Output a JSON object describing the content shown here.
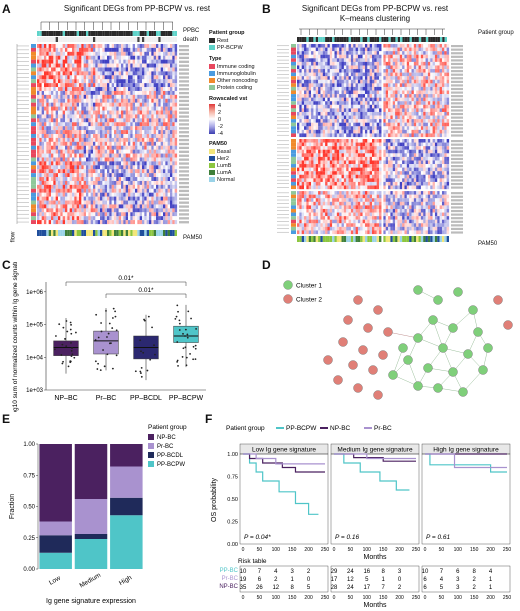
{
  "panels": {
    "A": "A",
    "B": "B",
    "C": "C",
    "D": "D",
    "E": "E",
    "F": "F"
  },
  "panelA": {
    "title": "Significant DEGs from PP-BCPW vs. rest",
    "top_tracks": [
      "PPBC",
      "death"
    ],
    "bottom_tracks": [
      "PAM50"
    ],
    "left_tracks": [
      "flow",
      "type"
    ],
    "legend": {
      "patient_group_title": "Patient group",
      "patient_group": [
        {
          "label": "Rest",
          "color": "#2a2a2a"
        },
        {
          "label": "PP-BCPW",
          "color": "#5fd3c9"
        }
      ],
      "type_title": "Type",
      "type": [
        {
          "label": "Immune coding",
          "color": "#e8475e"
        },
        {
          "label": "Immunoglobulin",
          "color": "#4a9be0"
        },
        {
          "label": "Other noncoding",
          "color": "#f08a2c"
        },
        {
          "label": "Protein coding",
          "color": "#8fc89a"
        }
      ],
      "rowscaled_title": "Rowscaled vst",
      "scale": [
        "4",
        "2",
        "0",
        "-2",
        "-4"
      ],
      "pam50_title": "PAM50",
      "pam50": [
        {
          "label": "Basal",
          "color": "#f2e67a"
        },
        {
          "label": "Her2",
          "color": "#1f4e9c"
        },
        {
          "label": "LumB",
          "color": "#8cc63f"
        },
        {
          "label": "LumA",
          "color": "#3f7f3a"
        },
        {
          "label": "Normal",
          "color": "#9ad3e8"
        }
      ]
    }
  },
  "panelB": {
    "title": "Significant DEGs from PP-BCPW vs. rest",
    "subtitle": "K–means clustering",
    "legend_label": "Patient group",
    "bottom_label": "PAM50"
  },
  "chart_data": [
    {
      "panel": "C",
      "type": "box",
      "ylabel": "Log10 sum of normalized counts within Ig gene signature",
      "categories": [
        "NP–BC",
        "Pr–BC",
        "PP–BCDL",
        "PP–BCPW"
      ],
      "colors": [
        "#4b2160",
        "#a992cf",
        "#2b2870",
        "#4fc5c8"
      ],
      "yticks": [
        "1e+03",
        "1e+04",
        "1e+05",
        "1e+06"
      ],
      "log_ylim": [
        3,
        6.3
      ],
      "boxes_log10": [
        {
          "q1": 4.05,
          "median": 4.3,
          "q3": 4.5,
          "lo": 3.5,
          "hi": 5.2
        },
        {
          "q1": 4.1,
          "median": 4.5,
          "q3": 4.8,
          "lo": 3.6,
          "hi": 5.5
        },
        {
          "q1": 3.95,
          "median": 4.3,
          "q3": 4.65,
          "lo": 3.3,
          "hi": 5.3
        },
        {
          "q1": 4.45,
          "median": 4.65,
          "q3": 4.95,
          "lo": 3.7,
          "hi": 5.6
        }
      ],
      "annotations": [
        "0.01*",
        "0.01*"
      ]
    },
    {
      "panel": "D",
      "type": "network",
      "legend": [
        "Cluster 1",
        "Cluster 2"
      ],
      "colors": [
        "#7fcf7a",
        "#e07f77"
      ]
    },
    {
      "panel": "E",
      "type": "stacked-bar",
      "xlabel": "Ig gene signature expression",
      "ylabel": "Fraction",
      "categories": [
        "Low",
        "Medium",
        "High"
      ],
      "yticks": [
        "0.00",
        "0.25",
        "0.50",
        "0.75",
        "1.00"
      ],
      "legend_title": "Patient group",
      "series": [
        {
          "name": "PP-BCPW",
          "color": "#4fc5c8",
          "values": [
            0.13,
            0.24,
            0.43
          ]
        },
        {
          "name": "PP-BCDL",
          "color": "#1f2a5a",
          "values": [
            0.14,
            0.04,
            0.14
          ]
        },
        {
          "name": "Pr-BC",
          "color": "#a992cf",
          "values": [
            0.11,
            0.28,
            0.25
          ]
        },
        {
          "name": "NP-BC",
          "color": "#4b2160",
          "values": [
            0.62,
            0.44,
            0.18
          ]
        }
      ]
    },
    {
      "panel": "F",
      "type": "kaplan-meier",
      "ylabel": "OS probability",
      "xlabel": "Months",
      "legend_title": "Patient group",
      "legend": [
        {
          "name": "PP-BCPW",
          "color": "#4fc5c8"
        },
        {
          "name": "NP-BC",
          "color": "#4b2160"
        },
        {
          "name": "Pr-BC",
          "color": "#a992cf"
        }
      ],
      "yticks": [
        "0.00",
        "0.25",
        "0.50",
        "0.75",
        "1.00"
      ],
      "xticks": [
        "0",
        "50",
        "100",
        "150",
        "200",
        "250"
      ],
      "facets": [
        {
          "title": "Low Ig gene signature",
          "pvalue": "P = 0.04*",
          "curves": {
            "PP-BCPW": [
              [
                0,
                1
              ],
              [
                20,
                0.9
              ],
              [
                40,
                0.8
              ],
              [
                60,
                0.7
              ],
              [
                110,
                0.58
              ],
              [
                160,
                0.45
              ],
              [
                200,
                0.33
              ],
              [
                230,
                0.33
              ]
            ],
            "NP-BC": [
              [
                0,
                1
              ],
              [
                20,
                0.95
              ],
              [
                60,
                0.9
              ],
              [
                120,
                0.85
              ],
              [
                160,
                0.8
              ],
              [
                250,
                0.8
              ]
            ],
            "Pr-BC": [
              [
                0,
                1
              ],
              [
                40,
                0.95
              ],
              [
                100,
                0.89
              ],
              [
                250,
                0.89
              ]
            ]
          }
        },
        {
          "title": "Medium Ig gene signature",
          "pvalue": "P = 0.16",
          "curves": {
            "PP-BCPW": [
              [
                0,
                1
              ],
              [
                30,
                0.9
              ],
              [
                80,
                0.8
              ],
              [
                140,
                0.7
              ],
              [
                190,
                0.6
              ],
              [
                230,
                0.6
              ]
            ],
            "NP-BC": [
              [
                0,
                1
              ],
              [
                60,
                0.96
              ],
              [
                150,
                0.92
              ],
              [
                250,
                0.92
              ]
            ],
            "Pr-BC": [
              [
                0,
                1
              ],
              [
                100,
                0.95
              ],
              [
                250,
                0.95
              ]
            ]
          }
        },
        {
          "title": "High Ig gene signature",
          "pvalue": "P = 0.61",
          "curves": {
            "PP-BCPW": [
              [
                0,
                1
              ],
              [
                15,
                0.88
              ],
              [
                200,
                0.8
              ],
              [
                250,
                0.8
              ]
            ],
            "NP-BC": [
              [
                0,
                1
              ],
              [
                250,
                1
              ]
            ],
            "Pr-BC": [
              [
                0,
                1
              ],
              [
                90,
                0.85
              ],
              [
                250,
                0.85
              ]
            ]
          }
        }
      ],
      "risk_table": {
        "title": "Risk table",
        "rows": [
          "PP-BC",
          "Pr-BC",
          "NP-BC"
        ],
        "row_colors": [
          "#4fc5c8",
          "#a992cf",
          "#4b2160"
        ],
        "values": [
          [
            [
              "10",
              "7",
              "4",
              "3",
              "2"
            ],
            [
              "29",
              "24",
              "16",
              "8",
              "3"
            ],
            [
              "10",
              "7",
              "6",
              "8",
              "4"
            ]
          ],
          [
            [
              "19",
              "6",
              "2",
              "1",
              "0"
            ],
            [
              "17",
              "12",
              "5",
              "1",
              "0"
            ],
            [
              "6",
              "4",
              "3",
              "2",
              "1"
            ]
          ],
          [
            [
              "35",
              "26",
              "12",
              "8",
              "5"
            ],
            [
              "28",
              "24",
              "17",
              "7",
              "2"
            ],
            [
              "6",
              "5",
              "3",
              "2",
              "1"
            ]
          ]
        ]
      }
    }
  ]
}
